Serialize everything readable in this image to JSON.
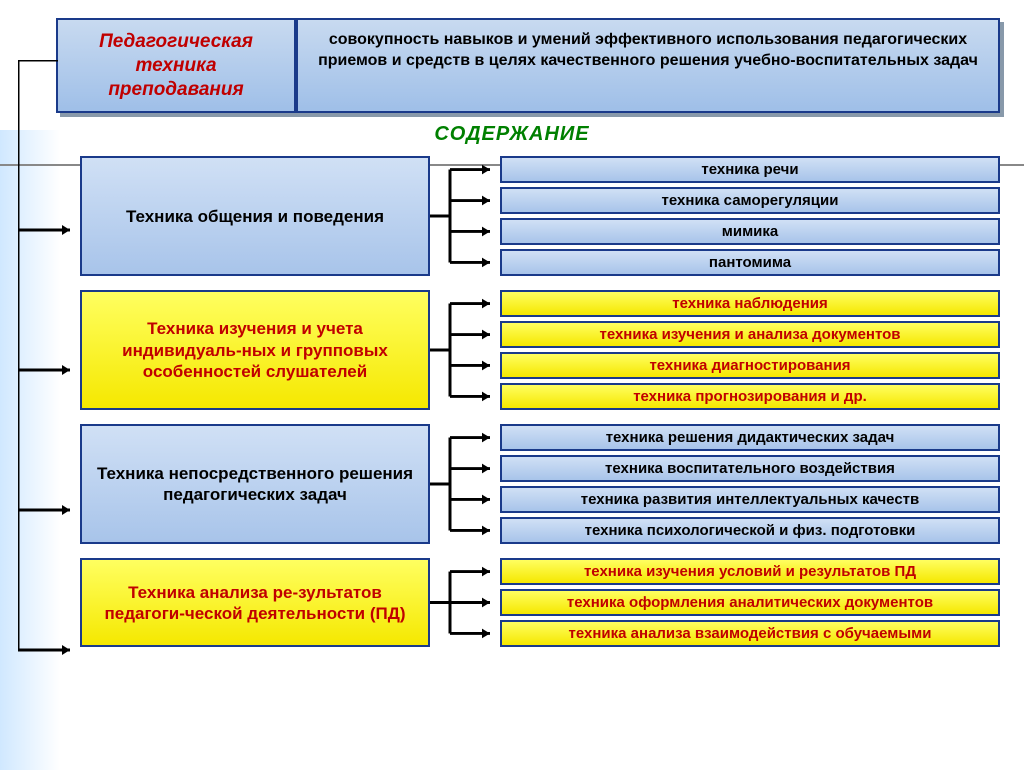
{
  "colors": {
    "blue_grad_top": "#d0e0f5",
    "blue_grad_bot": "#a8c4ea",
    "yellow_grad_top": "#ffff60",
    "yellow_grad_bot": "#f5e800",
    "border": "#1a3a8a",
    "red_text": "#c00000",
    "green_text": "#008000",
    "black": "#000000",
    "arrow": "#000000"
  },
  "header": {
    "title": "Педагогическая техника преподавания",
    "definition": "совокупность навыков и умений эффективного использования педагогических приемов и средств в целях качественного решения учебно-воспитательных задач"
  },
  "section_title": "СОДЕРЖАНИЕ",
  "blocks": [
    {
      "style": "blue",
      "left": "Техника общения и поведения",
      "items": [
        "техника речи",
        "техника саморегуляции",
        "мимика",
        "пантомима"
      ]
    },
    {
      "style": "yellow",
      "left": "Техника изучения и учета индивидуаль-ных и групповых особенностей слушателей",
      "items": [
        "техника наблюдения",
        "техника изучения и анализа документов",
        "техника диагностирования",
        "техника прогнозирования и др."
      ]
    },
    {
      "style": "blue",
      "left": "Техника непосредственного решения педагогических задач",
      "items": [
        "техника решения дидактических задач",
        "техника воспитательного воздействия",
        "техника развития интеллектуальных качеств",
        "техника психологической и физ. подготовки"
      ]
    },
    {
      "style": "yellow",
      "left": "Техника анализа ре-зультатов педагоги-ческой деятельности (ПД)",
      "items": [
        "техника изучения условий и результатов ПД",
        "техника оформления аналитических документов",
        "техника анализа взаимодействия с обучаемыми"
      ]
    }
  ]
}
